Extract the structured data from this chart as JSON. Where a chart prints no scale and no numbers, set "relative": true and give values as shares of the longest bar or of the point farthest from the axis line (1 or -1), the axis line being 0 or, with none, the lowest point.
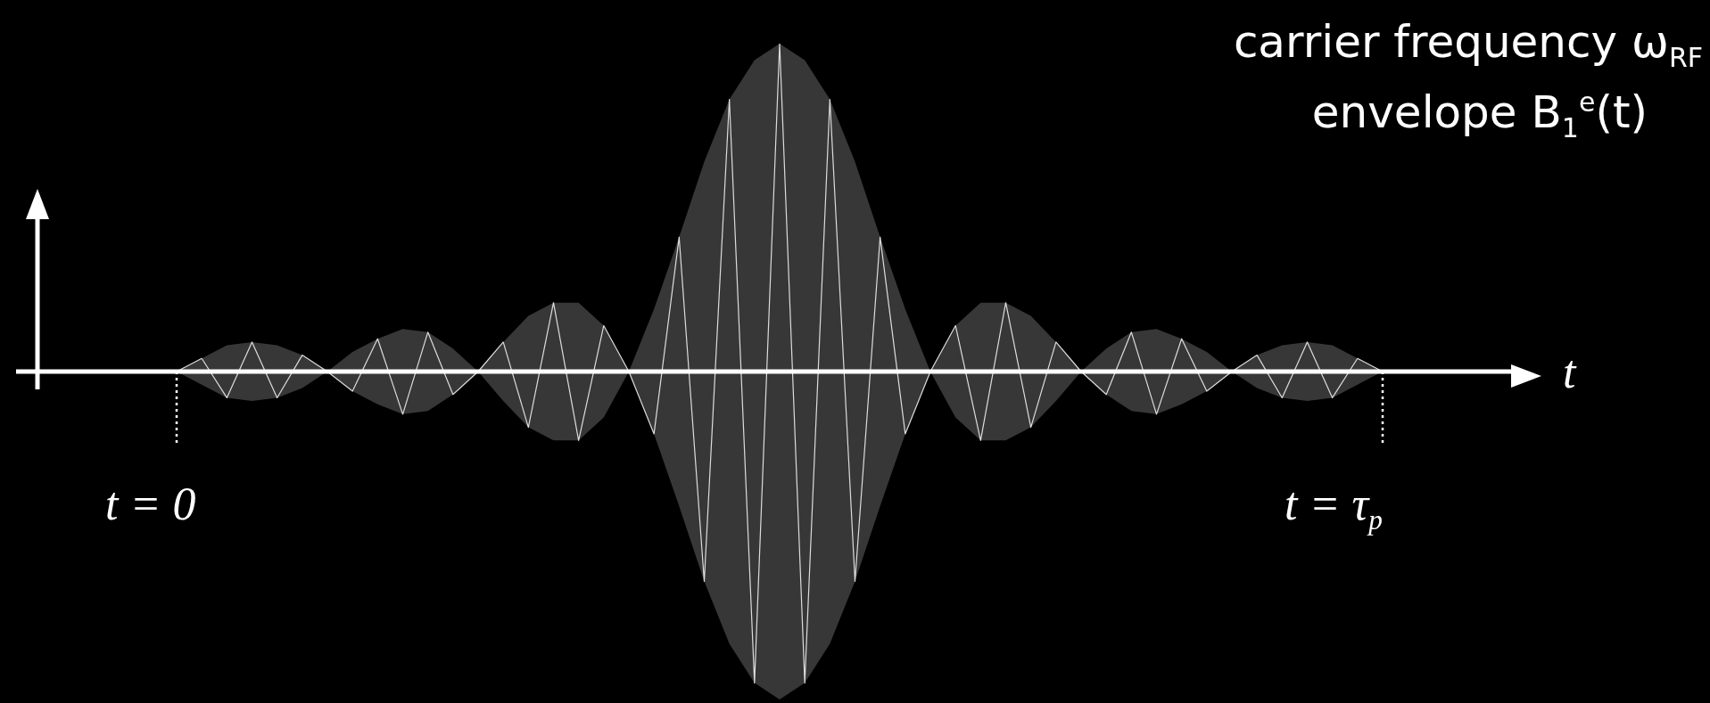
{
  "chart_data": {
    "type": "line",
    "relative": true,
    "xlabel": "t",
    "legend": false,
    "marker": "none",
    "categories": [
      null,
      null,
      null,
      null,
      null,
      null,
      null,
      null,
      null,
      null,
      null,
      null,
      null,
      null,
      null,
      null,
      null,
      null,
      null,
      null,
      null,
      null,
      null,
      null,
      null,
      null,
      null,
      null,
      null,
      null,
      null,
      null,
      null,
      null,
      null,
      null,
      null,
      null,
      null,
      null,
      null,
      null,
      null,
      null,
      null,
      null,
      null,
      null,
      null
    ],
    "series": [
      {
        "color": "#dddddd",
        "values": [
          0,
          0.04,
          -0.08,
          0.09,
          -0.08,
          0.05,
          0,
          -0.06,
          0.1,
          -0.13,
          0.12,
          -0.07,
          0,
          0.09,
          -0.17,
          0.21,
          -0.21,
          0.14,
          0,
          -0.19,
          0.41,
          -0.64,
          0.83,
          -0.95,
          1,
          -0.95,
          0.83,
          -0.64,
          0.41,
          -0.19,
          0,
          0.14,
          -0.21,
          0.21,
          -0.17,
          0.09,
          0,
          -0.07,
          0.12,
          -0.13,
          0.1,
          -0.06,
          0,
          0.05,
          -0.08,
          0.09,
          -0.08,
          0.04,
          0
        ],
        "upper": [
          0,
          -0.04,
          -0.08,
          -0.09,
          -0.08,
          -0.05,
          0,
          0.06,
          0.1,
          0.13,
          0.12,
          0.07,
          0,
          -0.09,
          -0.17,
          -0.21,
          -0.21,
          -0.14,
          0,
          0.19,
          0.41,
          0.64,
          0.83,
          0.95,
          1,
          0.95,
          0.83,
          0.64,
          0.41,
          0.19,
          0,
          -0.14,
          -0.21,
          -0.21,
          -0.17,
          -0.09,
          0,
          0.07,
          0.12,
          0.13,
          0.1,
          0.06,
          0,
          -0.05,
          -0.08,
          -0.09,
          -0.08,
          -0.04,
          0
        ],
        "lower": [
          0,
          0.04,
          0.08,
          0.09,
          0.08,
          0.05,
          0,
          -0.06,
          -0.1,
          -0.13,
          -0.12,
          -0.07,
          0,
          0.09,
          0.17,
          0.21,
          0.21,
          0.14,
          0,
          -0.19,
          -0.41,
          -0.64,
          -0.83,
          -0.95,
          -1,
          -0.95,
          -0.83,
          -0.64,
          -0.41,
          -0.19,
          0,
          0.14,
          0.21,
          0.21,
          0.17,
          0.09,
          0,
          -0.07,
          -0.12,
          -0.13,
          -0.1,
          -0.06,
          0,
          0.05,
          0.08,
          0.09,
          0.08,
          0.04,
          0
        ]
      }
    ],
    "annotations": [
      "carrier frequency ω$_{RF}$",
      "envelope B$_{1}$$^{e}$(t)",
      "t = 0",
      "t = τ$_{p}$"
    ]
  }
}
